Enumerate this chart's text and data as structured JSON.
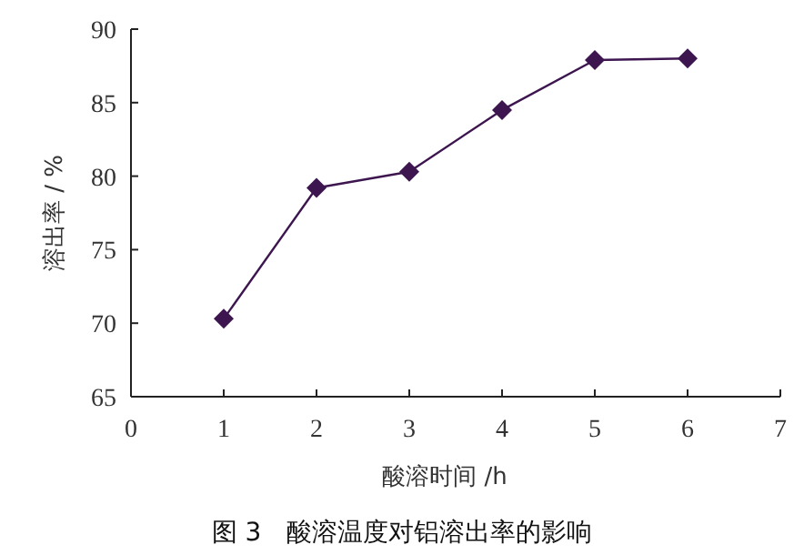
{
  "chart_data": {
    "type": "line",
    "title": "图 3　酸溶温度对铝溶出率的影响",
    "xlabel": "酸溶时间 /h",
    "ylabel": "溶出率 / %",
    "x": [
      1,
      2,
      3,
      4,
      5,
      6
    ],
    "series": [
      {
        "color": "#3d1650",
        "values": [
          70.3,
          79.2,
          80.3,
          84.5,
          87.9,
          88.0
        ]
      }
    ],
    "xlim": [
      0,
      7
    ],
    "xticks": [
      0,
      1,
      2,
      3,
      4,
      5,
      6,
      7
    ],
    "ylim": [
      65,
      90
    ],
    "yticks": [
      65,
      70,
      75,
      80,
      85,
      90
    ],
    "marker": "diamond",
    "line_style": "solid",
    "grid": false
  }
}
